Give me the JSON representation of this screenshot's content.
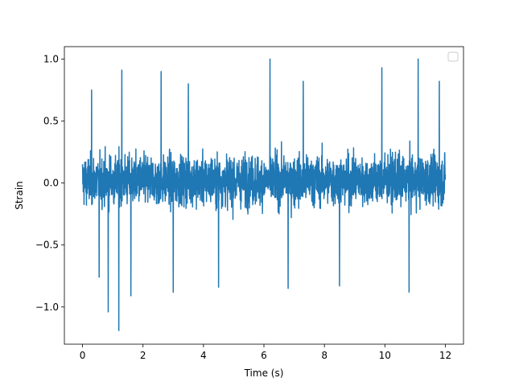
{
  "chart_data": {
    "type": "line",
    "title": "",
    "xlabel": "Time (s)",
    "ylabel": "Strain",
    "xlim": [
      -0.6,
      12.6
    ],
    "ylim": [
      -1.3,
      1.1
    ],
    "x_ticks": [
      0,
      2,
      4,
      6,
      8,
      10,
      12
    ],
    "x_tick_labels": [
      "0",
      "2",
      "4",
      "6",
      "8",
      "10",
      "12"
    ],
    "y_ticks": [
      1.0,
      0.5,
      0.0,
      -0.5,
      -1.0
    ],
    "y_tick_labels": [
      "1.0",
      "0.5",
      "0.0",
      "−1.0"
    ],
    "y_tick_labels_full": [
      "1.0",
      "0.5",
      "0.0",
      "−0.5",
      "−1.0"
    ],
    "grid": false,
    "legend": {
      "placement": "top-right",
      "entries": []
    },
    "series": [
      {
        "color": "#1f77b4",
        "x_range": [
          0,
          12
        ],
        "envelope_typical": [
          -0.55,
          0.6
        ],
        "notable_values": [
          {
            "x": 1.2,
            "y": -1.19
          },
          {
            "x": 0.85,
            "y": -1.04
          },
          {
            "x": 11.1,
            "y": 1.0
          },
          {
            "x": 6.2,
            "y": 1.0
          },
          {
            "x": 1.3,
            "y": 0.91
          }
        ]
      }
    ]
  }
}
